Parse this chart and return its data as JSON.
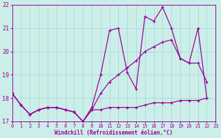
{
  "bg_color": "#cceee8",
  "grid_color": "#aadddd",
  "line_color": "#990099",
  "xlabel": "Windchill (Refroidissement éolien,°C)",
  "tick_color": "#990099",
  "xlim": [
    0,
    23
  ],
  "ylim": [
    17,
    22
  ],
  "xticks": [
    0,
    1,
    2,
    3,
    4,
    5,
    6,
    7,
    8,
    9,
    10,
    11,
    12,
    13,
    14,
    15,
    16,
    17,
    18,
    19,
    20,
    21,
    22,
    23
  ],
  "yticks": [
    17,
    18,
    19,
    20,
    21,
    22
  ],
  "series": [
    {
      "x": [
        0,
        1,
        2,
        3,
        4,
        5,
        6,
        7,
        8,
        9,
        10,
        11,
        12,
        13,
        14,
        15,
        16,
        17,
        18,
        19,
        20,
        21,
        22
      ],
      "y": [
        18.2,
        17.7,
        17.3,
        17.5,
        17.6,
        17.6,
        17.5,
        17.4,
        17.0,
        17.6,
        19.0,
        20.9,
        21.0,
        19.1,
        18.4,
        21.5,
        21.3,
        21.9,
        21.0,
        19.7,
        19.5,
        21.0,
        18.0
      ]
    },
    {
      "x": [
        0,
        1,
        2,
        3,
        4,
        5,
        6,
        7,
        8,
        9,
        10,
        11,
        12,
        13,
        14,
        15,
        16,
        17,
        18,
        19,
        20,
        21,
        22
      ],
      "y": [
        18.2,
        17.7,
        17.3,
        17.5,
        17.6,
        17.6,
        17.5,
        17.4,
        17.0,
        17.5,
        17.5,
        17.6,
        17.6,
        17.6,
        17.6,
        17.7,
        17.8,
        17.8,
        17.8,
        17.9,
        17.9,
        17.9,
        18.0
      ]
    },
    {
      "x": [
        0,
        1,
        2,
        3,
        4,
        5,
        6,
        7,
        8,
        9,
        10,
        11,
        12,
        13,
        14,
        15,
        16,
        17,
        18,
        19,
        20,
        21,
        22
      ],
      "y": [
        18.2,
        17.7,
        17.3,
        17.5,
        17.6,
        17.6,
        17.5,
        17.4,
        17.0,
        17.5,
        18.2,
        18.7,
        19.0,
        19.3,
        19.6,
        20.0,
        20.2,
        20.4,
        20.5,
        19.7,
        19.5,
        19.5,
        18.7
      ]
    }
  ]
}
